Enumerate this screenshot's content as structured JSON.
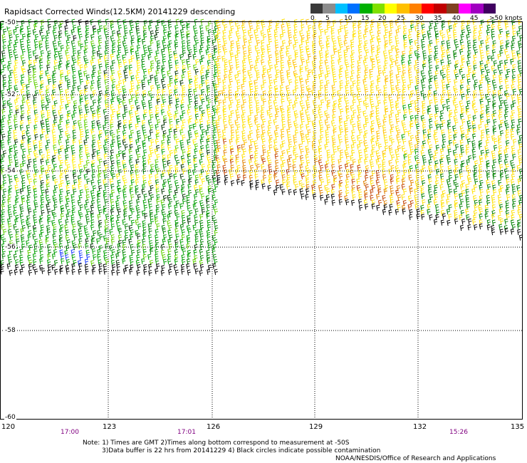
{
  "title": "Rapidsact Corrected Winds(12.5KM) 20141229 descending",
  "legend": {
    "labels": [
      "0",
      "5",
      "10",
      "15",
      "20",
      "25",
      "30",
      "35",
      "40",
      "45",
      ">50 knots"
    ],
    "colors": [
      "#3a3a3a",
      "#8c8c8c",
      "#00c0ff",
      "#0070ff",
      "#00b000",
      "#80e000",
      "#ffff00",
      "#ffc000",
      "#ff8000",
      "#ff0000",
      "#c00000",
      "#804020",
      "#ff00ff",
      "#a000c0",
      "#400060"
    ]
  },
  "axes": {
    "lat_labels": [
      "-50",
      "-52",
      "-54",
      "-56",
      "-58",
      "-60"
    ],
    "lon_labels": [
      "120",
      "123",
      "126",
      "129",
      "132",
      "135"
    ],
    "time_labels": [
      "17:00",
      "17:01",
      "15:26"
    ]
  },
  "notes": [
    "Note: 1) Times are GMT 2)Times along bottom correspond to measurement at -50S",
    "3)Data buffer is 22 hrs from 20141229 4) Black circles indicate possible contamination",
    "NOAA/NESDIS/Office of Research and Applications"
  ]
}
